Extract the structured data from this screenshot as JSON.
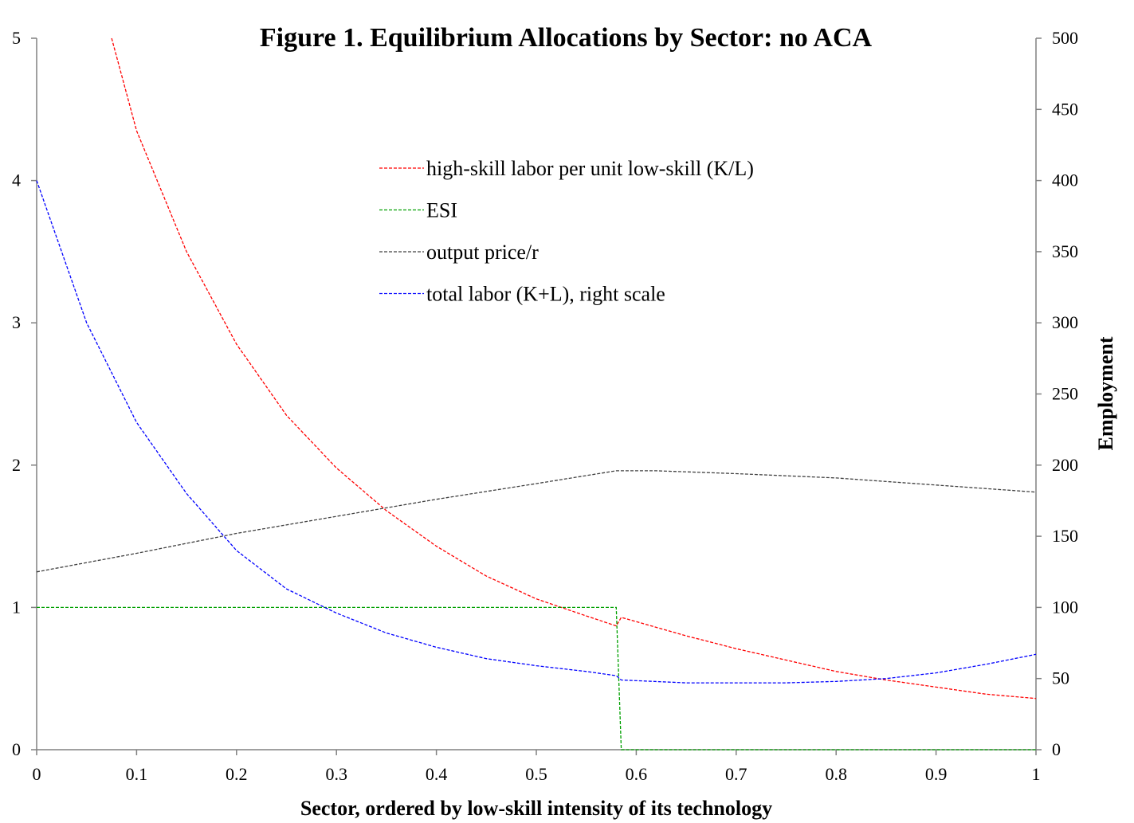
{
  "chart_data": {
    "type": "line",
    "title": "Figure 1.  Equilibrium Allocations by Sector: no ACA",
    "xlabel": "Sector, ordered by low-skill intensity of its technology",
    "ylabel_right": "Employment",
    "xlim": [
      0,
      1
    ],
    "ylim_left": [
      0,
      5
    ],
    "ylim_right": [
      0,
      500
    ],
    "x_ticks": [
      "0",
      "0.1",
      "0.2",
      "0.3",
      "0.4",
      "0.5",
      "0.6",
      "0.7",
      "0.8",
      "0.9",
      "1"
    ],
    "y_left_ticks": [
      "0",
      "1",
      "2",
      "3",
      "4",
      "5"
    ],
    "y_right_ticks": [
      "0",
      "50",
      "100",
      "150",
      "200",
      "250",
      "300",
      "350",
      "400",
      "450",
      "500"
    ],
    "grid": false,
    "legend_position": "top-center",
    "series": [
      {
        "name": "high-skill labor per unit low-skill (K/L)",
        "color": "#ff0000",
        "axis": "left",
        "points": [
          [
            0.075,
            5.0
          ],
          [
            0.1,
            4.35
          ],
          [
            0.15,
            3.5
          ],
          [
            0.2,
            2.85
          ],
          [
            0.25,
            2.35
          ],
          [
            0.3,
            1.98
          ],
          [
            0.35,
            1.68
          ],
          [
            0.4,
            1.43
          ],
          [
            0.45,
            1.22
          ],
          [
            0.5,
            1.06
          ],
          [
            0.55,
            0.94
          ],
          [
            0.58,
            0.87
          ],
          [
            0.585,
            0.93
          ],
          [
            0.65,
            0.8
          ],
          [
            0.7,
            0.71
          ],
          [
            0.75,
            0.63
          ],
          [
            0.8,
            0.55
          ],
          [
            0.85,
            0.49
          ],
          [
            0.9,
            0.44
          ],
          [
            0.95,
            0.39
          ],
          [
            1.0,
            0.36
          ]
        ]
      },
      {
        "name": "ESI",
        "color": "#00a000",
        "axis": "left",
        "points": [
          [
            0.0,
            1.0
          ],
          [
            0.58,
            1.0
          ],
          [
            0.585,
            0.0
          ],
          [
            1.0,
            0.0
          ]
        ]
      },
      {
        "name": "output price/r",
        "color": "#404040",
        "axis": "left",
        "points": [
          [
            0.0,
            1.25
          ],
          [
            0.1,
            1.38
          ],
          [
            0.2,
            1.52
          ],
          [
            0.3,
            1.64
          ],
          [
            0.4,
            1.76
          ],
          [
            0.5,
            1.87
          ],
          [
            0.58,
            1.96
          ],
          [
            0.62,
            1.96
          ],
          [
            0.7,
            1.94
          ],
          [
            0.8,
            1.91
          ],
          [
            0.9,
            1.86
          ],
          [
            1.0,
            1.81
          ]
        ]
      },
      {
        "name": "total labor (K+L), right scale",
        "color": "#0000ff",
        "axis": "right",
        "points": [
          [
            0.0,
            400
          ],
          [
            0.05,
            300
          ],
          [
            0.1,
            230
          ],
          [
            0.15,
            180
          ],
          [
            0.2,
            140
          ],
          [
            0.25,
            113
          ],
          [
            0.3,
            96
          ],
          [
            0.35,
            82
          ],
          [
            0.4,
            72
          ],
          [
            0.45,
            64
          ],
          [
            0.5,
            59
          ],
          [
            0.55,
            55
          ],
          [
            0.58,
            52
          ],
          [
            0.585,
            49
          ],
          [
            0.65,
            47
          ],
          [
            0.7,
            47
          ],
          [
            0.75,
            47
          ],
          [
            0.8,
            48
          ],
          [
            0.85,
            50
          ],
          [
            0.9,
            54
          ],
          [
            0.95,
            60
          ],
          [
            1.0,
            67
          ]
        ]
      }
    ]
  }
}
